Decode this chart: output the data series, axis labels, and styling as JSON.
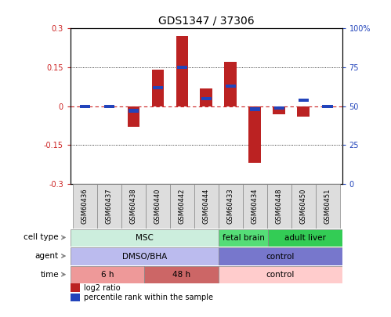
{
  "title": "GDS1347 / 37306",
  "samples": [
    "GSM60436",
    "GSM60437",
    "GSM60438",
    "GSM60440",
    "GSM60442",
    "GSM60444",
    "GSM60433",
    "GSM60434",
    "GSM60448",
    "GSM60450",
    "GSM60451"
  ],
  "log2_ratio": [
    0.0,
    0.0,
    -0.08,
    0.14,
    0.27,
    0.07,
    0.17,
    -0.22,
    -0.03,
    -0.04,
    0.0
  ],
  "percentile_rank": [
    50,
    50,
    47,
    62,
    75,
    55,
    63,
    48,
    49,
    54,
    50
  ],
  "ylim_left": [
    -0.3,
    0.3
  ],
  "ylim_right": [
    0,
    100
  ],
  "yticks_left": [
    -0.3,
    -0.15,
    0,
    0.15,
    0.3
  ],
  "yticks_right": [
    0,
    25,
    50,
    75,
    100
  ],
  "dotted_lines": [
    -0.15,
    0.15
  ],
  "bar_color": "#BB2222",
  "percentile_color": "#2244BB",
  "cell_type_groups": [
    {
      "label": "MSC",
      "start": 0,
      "end": 5,
      "color": "#CCEEDD"
    },
    {
      "label": "fetal brain",
      "start": 6,
      "end": 7,
      "color": "#55DD77"
    },
    {
      "label": "adult liver",
      "start": 8,
      "end": 10,
      "color": "#33CC55"
    }
  ],
  "agent_groups": [
    {
      "label": "DMSO/BHA",
      "start": 0,
      "end": 5,
      "color": "#BBBBEE"
    },
    {
      "label": "control",
      "start": 6,
      "end": 10,
      "color": "#7777CC"
    }
  ],
  "time_groups": [
    {
      "label": "6 h",
      "start": 0,
      "end": 2,
      "color": "#EE9999"
    },
    {
      "label": "48 h",
      "start": 3,
      "end": 5,
      "color": "#CC6666"
    },
    {
      "label": "control",
      "start": 6,
      "end": 10,
      "color": "#FFCCCC"
    }
  ],
  "row_labels": [
    "cell type",
    "agent",
    "time"
  ],
  "legend_log2_label": "log2 ratio",
  "legend_pct_label": "percentile rank within the sample",
  "background_color": "#FFFFFF"
}
